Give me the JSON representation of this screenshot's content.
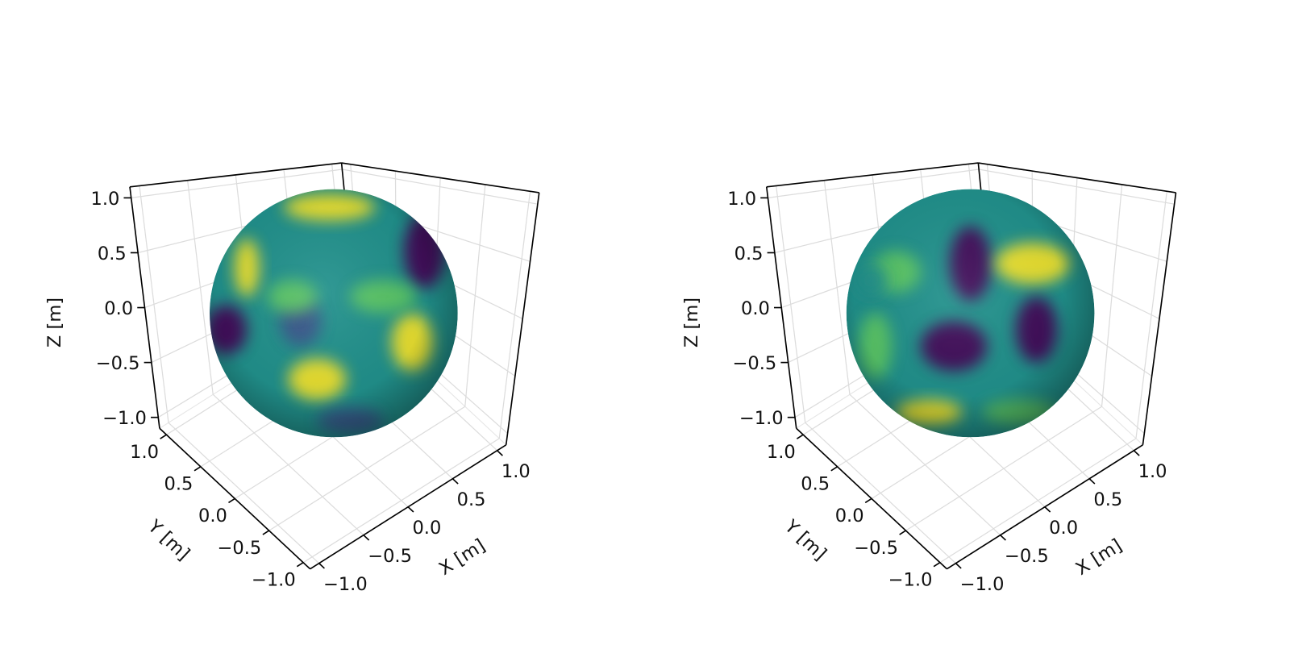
{
  "chart_data": [
    {
      "type": "surface3d",
      "surface": "sphere",
      "xlabel": "X [m]",
      "ylabel": "Y [m]",
      "zlabel": "Z [m]",
      "xlim": [
        -1.1,
        1.1
      ],
      "ylim": [
        -1.1,
        1.1
      ],
      "zlim": [
        -1.1,
        1.1
      ],
      "xticks": [
        {
          "value": -1,
          "label": "−1.0"
        },
        {
          "value": -0.5,
          "label": "−0.5"
        },
        {
          "value": 0,
          "label": "0.0"
        },
        {
          "value": 0.5,
          "label": "0.5"
        },
        {
          "value": 1,
          "label": "1.0"
        }
      ],
      "yticks": [
        {
          "value": -1,
          "label": "−1.0"
        },
        {
          "value": -0.5,
          "label": "−0.5"
        },
        {
          "value": 0,
          "label": "0.0"
        },
        {
          "value": 0.5,
          "label": "0.5"
        },
        {
          "value": 1,
          "label": "1.0"
        }
      ],
      "zticks": [
        {
          "value": -1,
          "label": "−1.0"
        },
        {
          "value": -0.5,
          "label": "−0.5"
        },
        {
          "value": 0,
          "label": "0.0"
        },
        {
          "value": 0.5,
          "label": "0.5"
        },
        {
          "value": 1,
          "label": "1.0"
        }
      ],
      "grid": true,
      "colormap": [
        "#440154",
        "#3b528b",
        "#21918c",
        "#5ec962",
        "#fde725"
      ]
    },
    {
      "type": "surface3d",
      "surface": "sphere",
      "xlabel": "X [m]",
      "ylabel": "Y [m]",
      "zlabel": "Z [m]",
      "xlim": [
        -1.1,
        1.1
      ],
      "ylim": [
        -1.1,
        1.1
      ],
      "zlim": [
        -1.1,
        1.1
      ],
      "xticks": [
        {
          "value": -1,
          "label": "−1.0"
        },
        {
          "value": -0.5,
          "label": "−0.5"
        },
        {
          "value": 0,
          "label": "0.0"
        },
        {
          "value": 0.5,
          "label": "0.5"
        },
        {
          "value": 1,
          "label": "1.0"
        }
      ],
      "yticks": [
        {
          "value": -1,
          "label": "−1.0"
        },
        {
          "value": -0.5,
          "label": "−0.5"
        },
        {
          "value": 0,
          "label": "0.0"
        },
        {
          "value": 0.5,
          "label": "0.5"
        },
        {
          "value": 1,
          "label": "1.0"
        }
      ],
      "zticks": [
        {
          "value": -1,
          "label": "−1.0"
        },
        {
          "value": -0.5,
          "label": "−0.5"
        },
        {
          "value": 0,
          "label": "0.0"
        },
        {
          "value": 0.5,
          "label": "0.5"
        },
        {
          "value": 1,
          "label": "1.0"
        }
      ],
      "grid": true,
      "colormap": [
        "#440154",
        "#3b528b",
        "#21918c",
        "#5ec962",
        "#fde725"
      ]
    }
  ]
}
